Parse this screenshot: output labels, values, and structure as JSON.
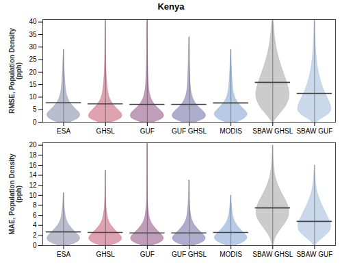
{
  "chart_data": [
    {
      "type": "violin",
      "title": "Kenya",
      "y_label": "RMSE, Population Density\n(pph)",
      "categories": [
        "ESA",
        "GHSL",
        "GUF",
        "GUF GHSL",
        "MODIS",
        "SBAW GHSL",
        "SBAW GUF"
      ],
      "colors": [
        "#7f86a6",
        "#c4566f",
        "#8c4f80",
        "#6b6aa6",
        "#7ba1d2",
        "#a3a3a3",
        "#9dbadb"
      ],
      "ylim": [
        0,
        41
      ],
      "yticks": [
        0,
        5,
        10,
        15,
        20,
        25,
        30,
        35,
        40
      ],
      "means": [
        7.8,
        7.3,
        7.1,
        7.1,
        7.7,
        15.9,
        11.5
      ],
      "max": [
        29,
        41,
        41,
        34,
        29,
        41,
        41
      ],
      "levels": [
        0,
        1,
        2,
        3,
        4,
        5,
        6,
        8,
        10,
        12,
        15,
        20,
        25,
        30,
        35,
        40
      ],
      "density": [
        [
          0.15,
          0.3,
          0.38,
          0.4,
          0.37,
          0.3,
          0.24,
          0.14,
          0.09,
          0.06,
          0.04,
          0.02,
          0.01,
          null,
          null,
          null
        ],
        [
          0.15,
          0.32,
          0.4,
          0.4,
          0.36,
          0.3,
          0.24,
          0.14,
          0.09,
          0.06,
          0.04,
          0.02,
          0.012,
          0.008,
          0.005,
          0.004
        ],
        [
          0.15,
          0.32,
          0.4,
          0.4,
          0.36,
          0.3,
          0.23,
          0.13,
          0.08,
          0.05,
          0.03,
          0.02,
          0.012,
          0.008,
          0.005,
          0.004
        ],
        [
          0.15,
          0.32,
          0.4,
          0.4,
          0.36,
          0.3,
          0.23,
          0.13,
          0.08,
          0.05,
          0.03,
          0.02,
          0.01,
          0.006,
          null,
          null
        ],
        [
          0.13,
          0.28,
          0.36,
          0.4,
          0.38,
          0.32,
          0.26,
          0.15,
          0.09,
          0.06,
          0.04,
          0.02,
          0.01,
          null,
          null,
          null
        ],
        [
          0.02,
          0.05,
          0.1,
          0.15,
          0.2,
          0.25,
          0.3,
          0.36,
          0.4,
          0.4,
          0.36,
          0.25,
          0.15,
          0.08,
          0.04,
          0.02
        ],
        [
          0.05,
          0.12,
          0.22,
          0.32,
          0.38,
          0.4,
          0.4,
          0.36,
          0.3,
          0.24,
          0.17,
          0.09,
          0.05,
          0.025,
          0.012,
          0.006
        ]
      ]
    },
    {
      "type": "violin",
      "y_label": "MAE, Population Density\n(pph)",
      "categories": [
        "ESA",
        "GHSL",
        "GUF",
        "GUF GHSL",
        "MODIS",
        "SBAW GHSL",
        "SBAW GUF"
      ],
      "colors": [
        "#7f86a6",
        "#c4566f",
        "#8c4f80",
        "#6b6aa6",
        "#7ba1d2",
        "#a3a3a3",
        "#9dbadb"
      ],
      "ylim": [
        0,
        20.5
      ],
      "yticks": [
        0,
        2,
        4,
        6,
        8,
        10,
        12,
        14,
        16,
        18,
        20
      ],
      "means": [
        2.7,
        2.6,
        2.5,
        2.5,
        2.6,
        7.5,
        4.8
      ],
      "max": [
        10.5,
        15,
        20.5,
        13,
        10,
        20,
        16
      ],
      "levels": [
        0,
        0.5,
        1,
        1.5,
        2,
        2.5,
        3,
        4,
        5,
        6,
        8,
        10,
        12,
        14,
        16,
        18,
        20
      ],
      "density": [
        [
          0.12,
          0.3,
          0.38,
          0.4,
          0.36,
          0.3,
          0.24,
          0.13,
          0.07,
          0.04,
          0.015,
          0.005,
          null,
          null,
          null,
          null,
          null
        ],
        [
          0.12,
          0.3,
          0.38,
          0.4,
          0.36,
          0.3,
          0.24,
          0.13,
          0.07,
          0.04,
          0.015,
          0.006,
          0.004,
          0.003,
          null,
          null,
          null
        ],
        [
          0.12,
          0.3,
          0.38,
          0.4,
          0.36,
          0.3,
          0.24,
          0.13,
          0.07,
          0.04,
          0.015,
          0.006,
          0.004,
          0.003,
          0.003,
          0.002,
          0.002
        ],
        [
          0.12,
          0.3,
          0.38,
          0.4,
          0.36,
          0.3,
          0.24,
          0.13,
          0.07,
          0.04,
          0.015,
          0.006,
          0.004,
          null,
          null,
          null,
          null
        ],
        [
          0.1,
          0.27,
          0.36,
          0.4,
          0.37,
          0.31,
          0.25,
          0.14,
          0.08,
          0.04,
          0.015,
          null,
          null,
          null,
          null,
          null,
          null
        ],
        [
          0.01,
          0.02,
          0.04,
          0.06,
          0.09,
          0.13,
          0.17,
          0.26,
          0.34,
          0.4,
          0.38,
          0.24,
          0.12,
          0.05,
          0.02,
          0.008,
          null
        ],
        [
          0.02,
          0.06,
          0.12,
          0.2,
          0.27,
          0.33,
          0.38,
          0.4,
          0.36,
          0.3,
          0.18,
          0.08,
          0.03,
          0.012,
          null,
          null,
          null
        ]
      ]
    }
  ]
}
